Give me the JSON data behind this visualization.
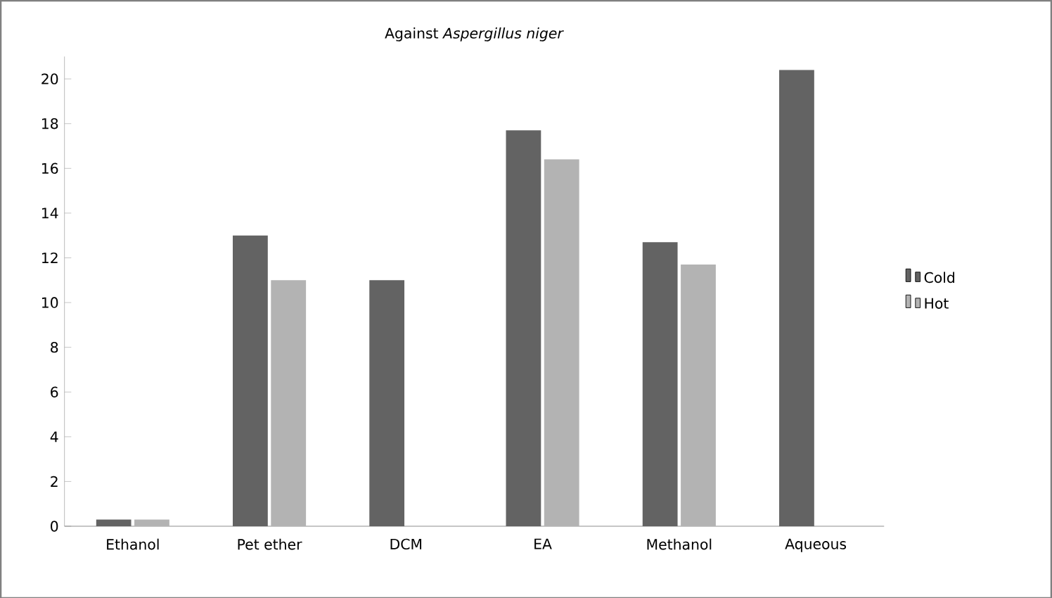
{
  "chart_data": {
    "type": "bar",
    "title": "Against *Aspergillus niger*",
    "categories": [
      "Ethanol",
      "Pet ether",
      "DCM",
      "EA",
      "Methanol",
      "Aqueous"
    ],
    "series": [
      {
        "name": "Cold",
        "color": "#636363",
        "values": [
          0.3,
          13,
          11,
          17.7,
          12.7,
          20.4
        ]
      },
      {
        "name": "Hot",
        "color": "#b3b3b3",
        "values": [
          0.3,
          11,
          null,
          16.4,
          11.7,
          null
        ]
      }
    ],
    "ylim": [
      0,
      21
    ],
    "yticks": [
      0,
      2,
      4,
      6,
      8,
      10,
      12,
      14,
      16,
      18,
      20
    ],
    "grid": false,
    "legend": "right"
  }
}
